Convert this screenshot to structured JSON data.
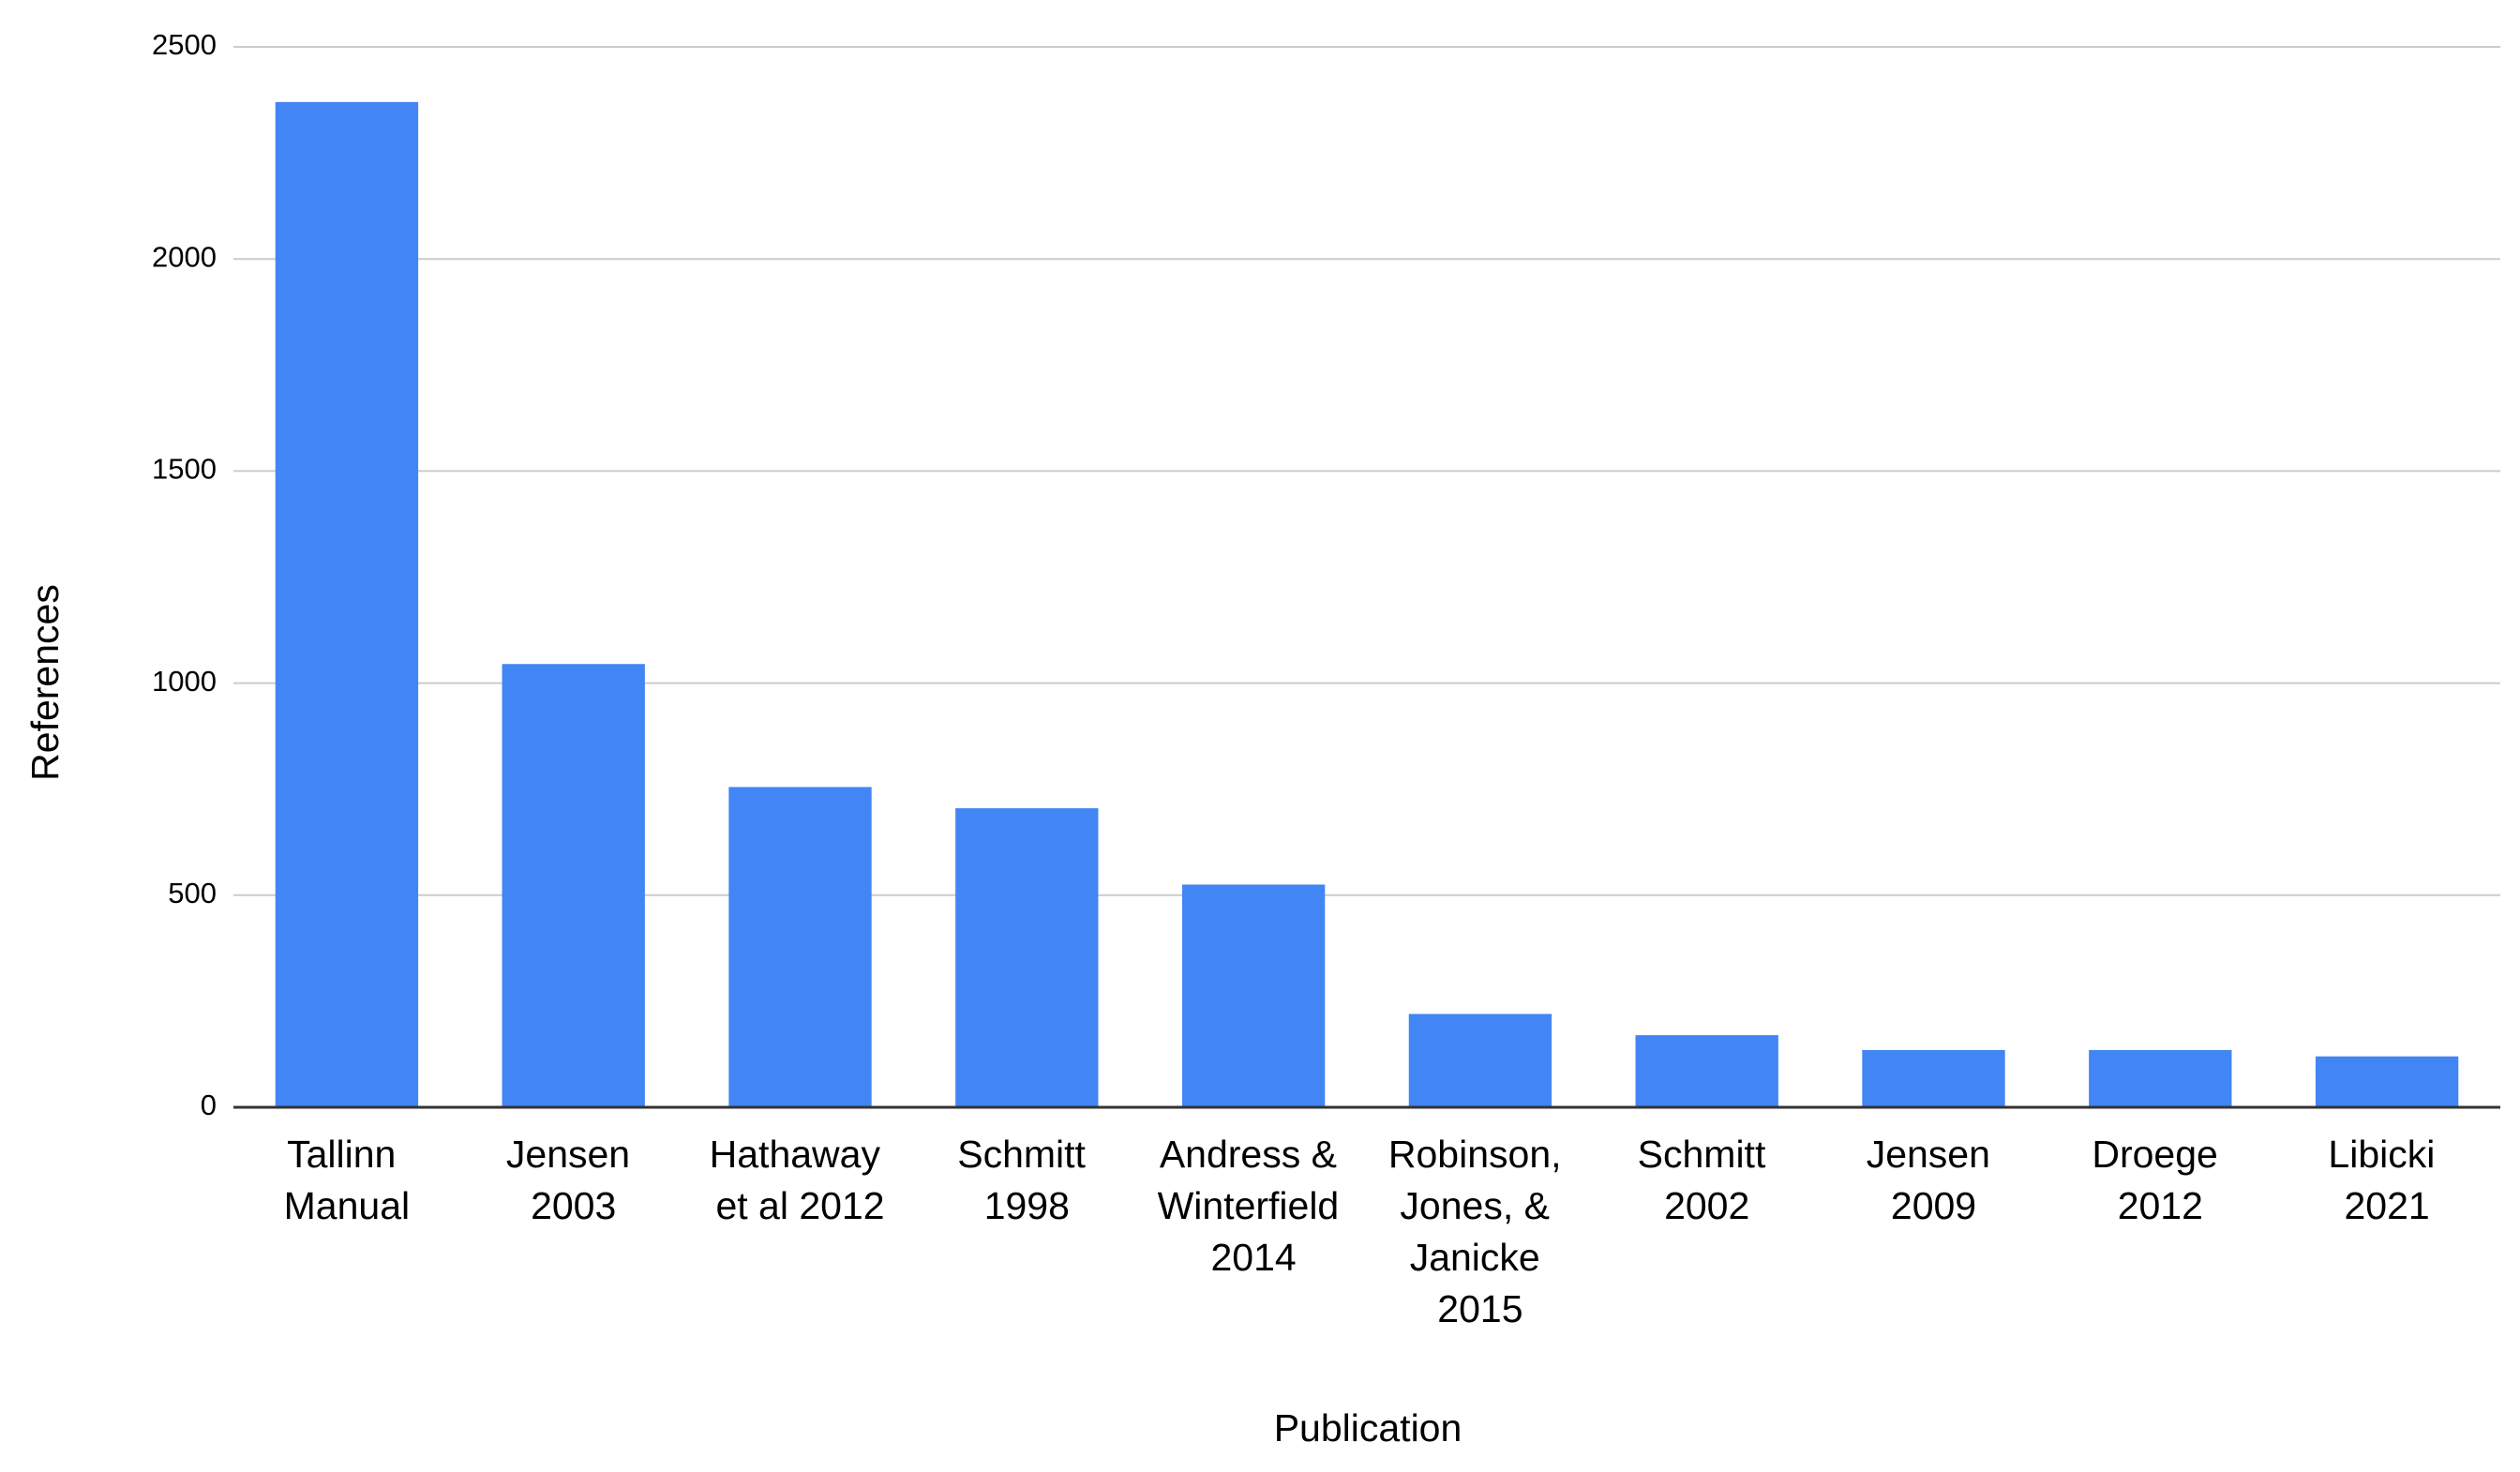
{
  "chart_data": {
    "type": "bar",
    "x_label": "Publication",
    "y_label": "References",
    "categories": [
      "Tallinn Manual",
      "Jensen 2003",
      "Hathaway et al 2012",
      "Schmitt 1998",
      "Andress & Winterfield 2014",
      "Robinson, Jones, & Janicke 2015",
      "Schmitt 2002",
      "Jensen 2009",
      "Droege 2012",
      "Libicki 2021"
    ],
    "values": [
      2370,
      1045,
      755,
      705,
      525,
      220,
      170,
      135,
      135,
      120
    ],
    "color": "#4285f4",
    "ylim": [
      0,
      2500
    ],
    "yticks": [
      0,
      500,
      1000,
      1500,
      2000,
      2500
    ],
    "grid": true
  }
}
